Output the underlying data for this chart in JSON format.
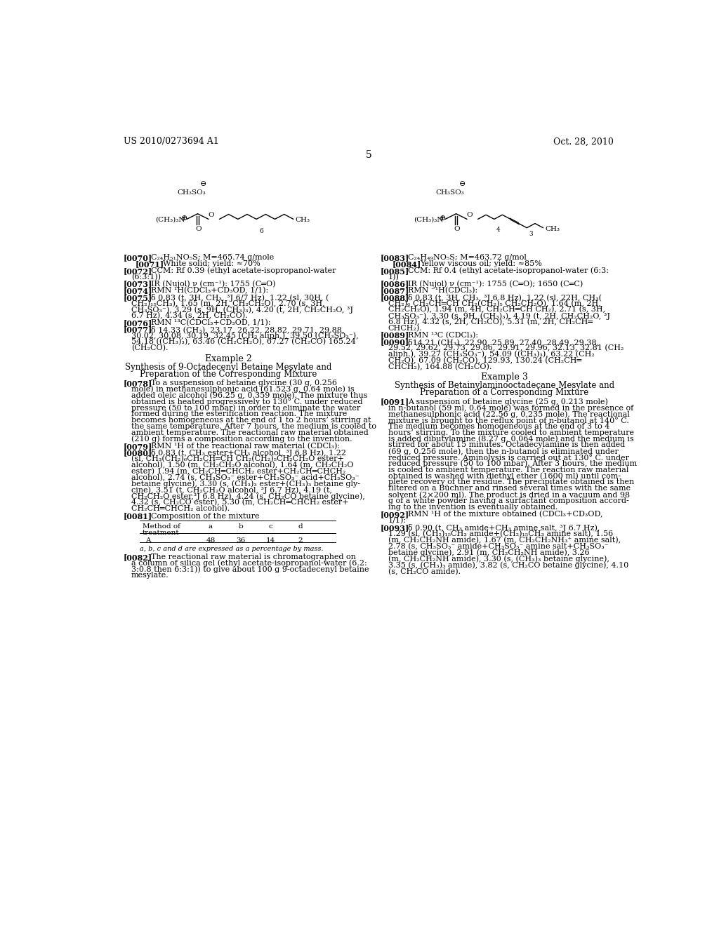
{
  "background_color": "#ffffff",
  "header_left": "US 2010/0273694 A1",
  "header_right": "Oct. 28, 2010",
  "page_number": "5",
  "left_paragraphs": [
    {
      "tag": "[0070]",
      "text": "  C₂₄H₅₁NO₅S; M=465.74 g/mole",
      "indent": false,
      "extra_indent": true
    },
    {
      "tag": "    [0071]",
      "text": "  White solid; yield: ≈70%",
      "indent": false,
      "extra_indent": false
    },
    {
      "tag": "[0072]",
      "text": "  CCM: Rf 0.39 (ethyl acetate-isopropanol-water\n(6:3:1))",
      "indent": false,
      "extra_indent": false
    },
    {
      "tag": "[0073]",
      "text": "  IR (Nujol) ν (cm⁻¹): 1755 (C═O)",
      "indent": false,
      "extra_indent": false
    },
    {
      "tag": "[0074]",
      "text": "  RMN ¹H(CDCl₃+CD₃OD, 1/1):",
      "indent": false,
      "extra_indent": false
    },
    {
      "tag": "[0075]",
      "text": "  δ 0.83 (t, 3H, CH₃, ³J 6/7 Hz), 1.22 (sl, 30H, (\nCH₂)₁₅CH₃), 1.65 (m, 2H, CH₂CH₂O), 2.70 (s, 3H,\nCH₃SO₃⁻), 3.29 (s, 9H, (CH₃)₃), 4.20 (t, 2H, CH₂CH₂O, ³J\n6.7 Hz), 4.34 (s, 2H, CH₂CO).",
      "indent": false,
      "extra_indent": false
    },
    {
      "tag": "[0076]",
      "text": "  RMN ¹³C(CDCl₃+CD₃OD, 1/1):",
      "indent": false,
      "extra_indent": false
    },
    {
      "tag": "[0077]",
      "text": "  δ 14.33 (CH₃), 23.17, 26.22, 28.82, 29.71, 29.88,\n30.02, 30.08, 30.19, 32.45 (CH₂ aliph.), 39.50 (CH₃SO₃⁻),\n54.18 ((CH₃)₃), 63.46 (CH₂CH₂O), 67.27 (CH₂CO) 165.24\n(CH₂CO).",
      "indent": false,
      "extra_indent": false
    }
  ],
  "right_paragraphs": [
    {
      "tag": "[0083]",
      "text": "  C₂₄H₄₉NO₅S; M=463.72 g/mol",
      "indent": false
    },
    {
      "tag": "[0084]",
      "text": "  Yellow viscous oil; yield: ≈85%",
      "indent": false
    },
    {
      "tag": "[0085]",
      "text": "  CCM: Rf 0.4 (ethyl acetate-isopropanol-water (6:3:\n1))",
      "indent": false
    },
    {
      "tag": "[0086]",
      "text": "  IR (Nujol) ν (cm⁻¹): 1755 (C═O); 1650 (C═C)",
      "indent": false
    },
    {
      "tag": "[0087]",
      "text": "  RMN ⁻¹H(CDCl₃):",
      "indent": false
    },
    {
      "tag": "[0088]",
      "text": "  δ 0.83 (t, 3H, CH₃, ³J 6.8 Hz), 1.22 (sl, 22H, CH₃(\nCH₂)₆ CH₂CH═CH CH₂(CH₂)₅ CH₂CH₂O), 1.64 (m, 2H,\nCH₂CH₂O), 1.94 (m, 4H, CH₂CH═CH CH₂), 2.71 (s, 3H,\nCH₃SO₃⁻), 3.30 (s, 9H, (CH₃)₃), 4.19 (t, 2H, CH₂CH₂O, ³J\n6.8 Hz), 4.32 (s, 2H, CH₂CO), 5.31 (m, 2H, CH₂CH═\nCHCH₂).",
      "indent": false
    },
    {
      "tag": "[0089]",
      "text": "  RMN ¹³C (CDCl₃):",
      "indent": false
    },
    {
      "tag": "[0090]",
      "text": "  δ14.21 (CH₃), 22.90, 25.89, 27.40, 28.49, 29.38,\n29.52, 29.62, 29.73, 29.86, 29.91, 29.96, 32.13, 32.81 (CH₂\naliph.), 39.27 (CH₃SO₃⁻), 54.09 ((CH₃)₃), 63.22 (CH₂\nCH₂O), 67.09 (CH₂CO), 129.93, 130.24 (CH₂CH═\nCHCH₂), 164.88 (CH₂CO).",
      "indent": false
    }
  ]
}
